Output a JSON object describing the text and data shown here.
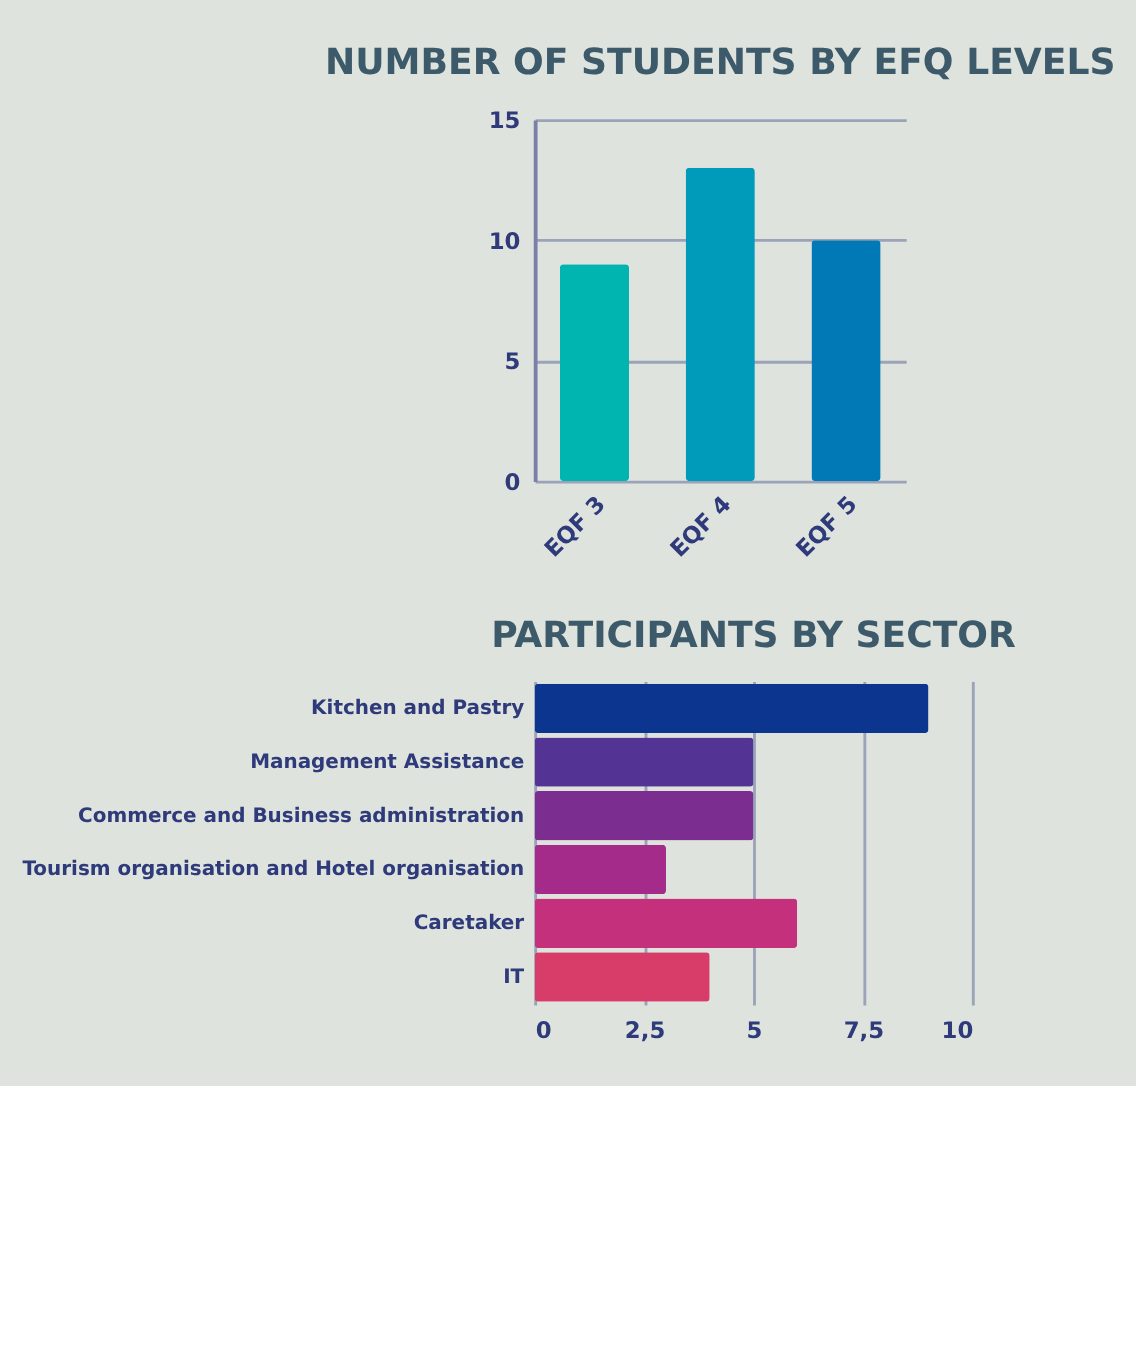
{
  "chart_data": [
    {
      "type": "bar",
      "title": "NUMBER OF STUDENTS BY EFQ LEVELS",
      "categories": [
        "EQF 3",
        "EQF 4",
        "EQF 5"
      ],
      "values": [
        9,
        13,
        10
      ],
      "colors": [
        "#00b5b0",
        "#009bbb",
        "#0079b6"
      ],
      "ylim": [
        0,
        15
      ],
      "yticks": [
        0,
        5,
        10,
        15
      ],
      "grid": "y"
    },
    {
      "type": "bar",
      "title": "PARTICIPANTS BY SECTOR",
      "orientation": "horizontal",
      "categories": [
        "Kitchen and Pastry",
        "Management Assistance",
        "Commerce and Business administration",
        "Tourism organisation and Hotel organisation",
        "Caretaker",
        "IT"
      ],
      "values": [
        9,
        5,
        5,
        3,
        6,
        4
      ],
      "colors": [
        "#0c3590",
        "#533393",
        "#7b2d90",
        "#a52b8a",
        "#c4307c",
        "#d83d6a"
      ],
      "xlim": [
        0,
        10
      ],
      "xticks": [
        0,
        {
          "value": 2.5,
          "label": "2,5"
        },
        5,
        {
          "value": 7.5,
          "label": "7,5"
        },
        10
      ],
      "grid": "x"
    }
  ]
}
